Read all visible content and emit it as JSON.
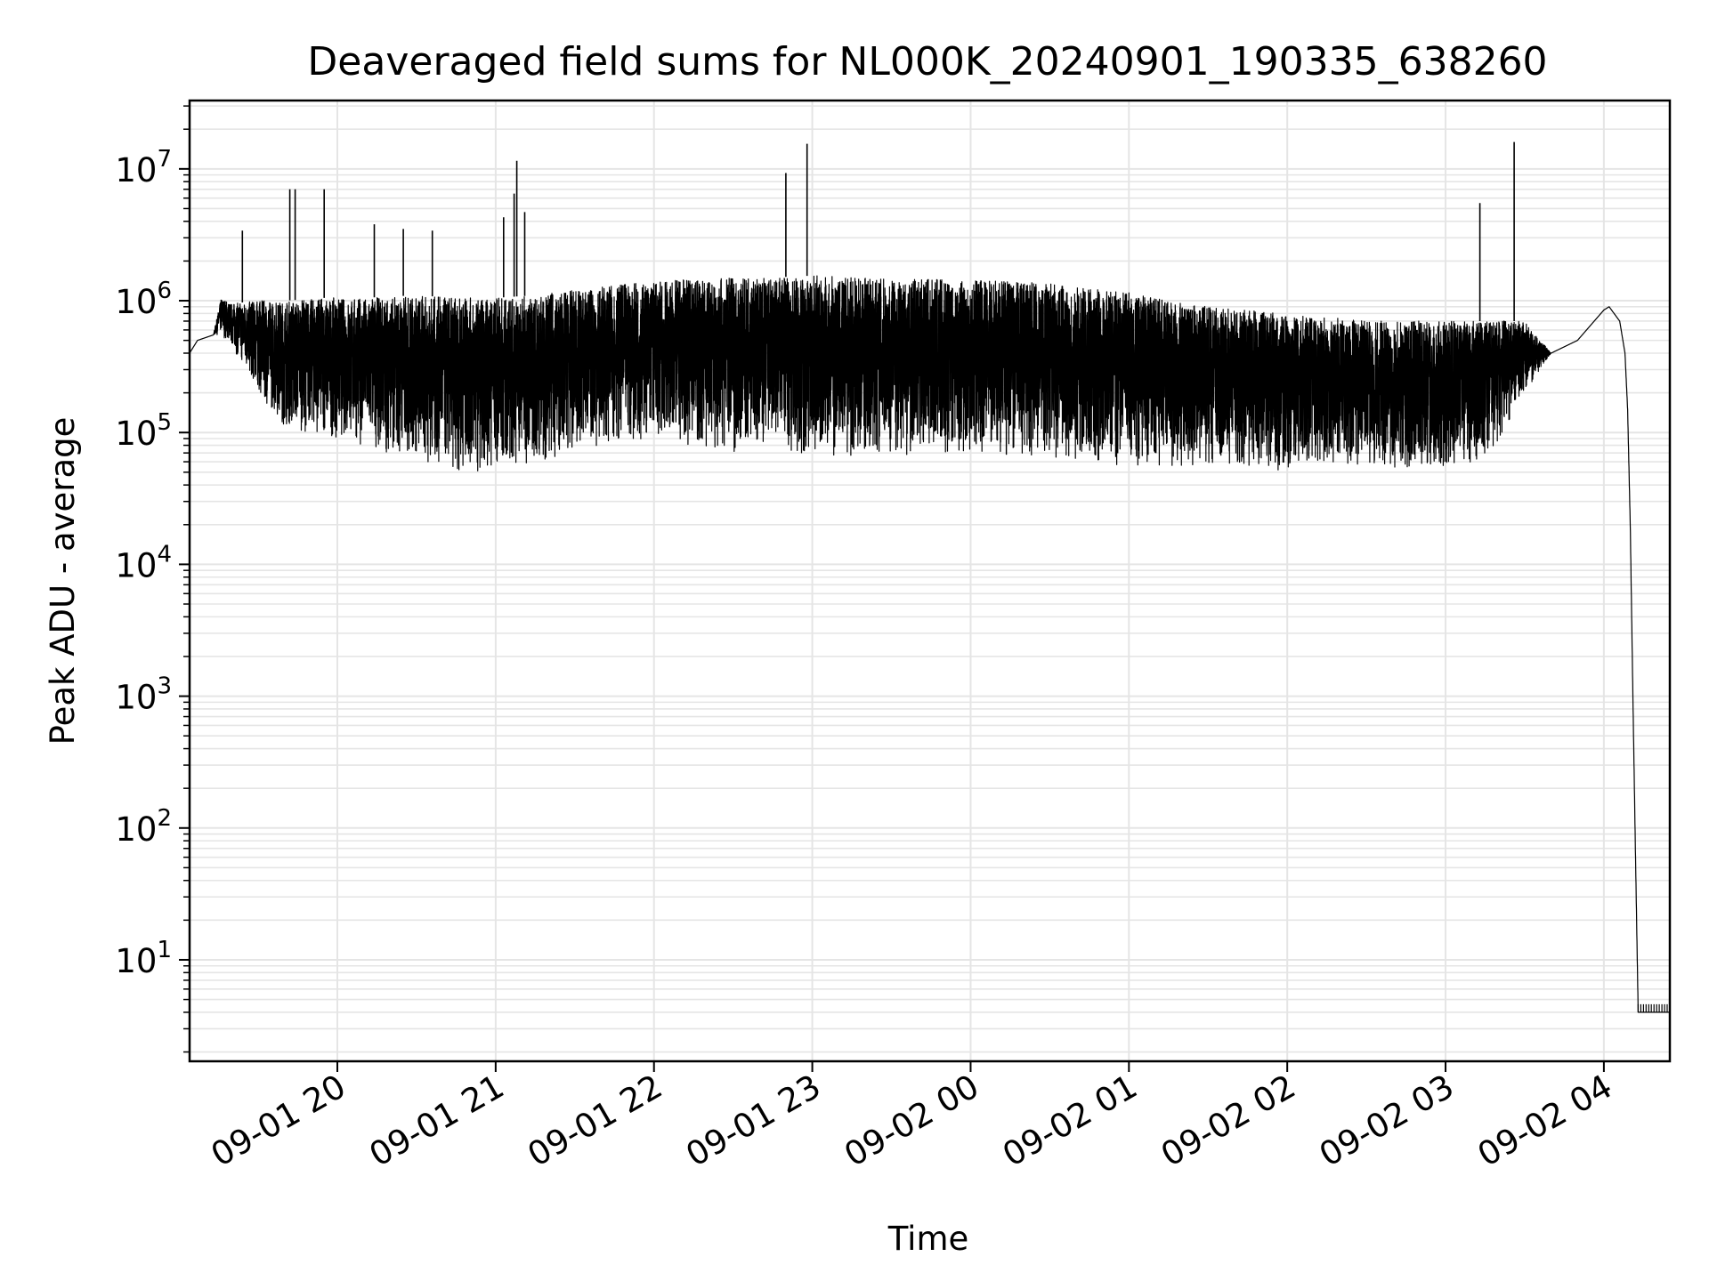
{
  "chart_data": {
    "type": "line",
    "title": "Deaveraged field sums for NL000K_20240901_190335_638260",
    "xlabel": "Time",
    "ylabel": "Peak ADU - average",
    "yscale": "log",
    "ylim": [
      1.7,
      33000000
    ],
    "xlim": [
      "2024-09-01 19:04",
      "2024-09-02 04:25"
    ],
    "x_tick_labels": [
      "09-01 20",
      "09-01 21",
      "09-01 22",
      "09-01 23",
      "09-02 00",
      "09-02 01",
      "09-02 02",
      "09-02 03",
      "09-02 04"
    ],
    "x_ticks": [
      "2024-09-01 20:00",
      "2024-09-01 21:00",
      "2024-09-01 22:00",
      "2024-09-01 23:00",
      "2024-09-02 00:00",
      "2024-09-02 01:00",
      "2024-09-02 02:00",
      "2024-09-02 03:00",
      "2024-09-02 04:00"
    ],
    "y_tick_labels": [
      {
        "base": "10",
        "exp": "1"
      },
      {
        "base": "10",
        "exp": "2"
      },
      {
        "base": "10",
        "exp": "3"
      },
      {
        "base": "10",
        "exp": "4"
      },
      {
        "base": "10",
        "exp": "5"
      },
      {
        "base": "10",
        "exp": "6"
      },
      {
        "base": "10",
        "exp": "7"
      }
    ],
    "y_ticks": [
      10,
      100,
      1000,
      10000,
      100000,
      1000000,
      10000000
    ],
    "grid": "on",
    "line_color": "#000000",
    "grid_color": "#e5e5e5",
    "series": [
      {
        "x": [
          "2024-09-01 19:04",
          "2024-09-01 19:07",
          "2024-09-01 19:13",
          "2024-09-01 19:16",
          "2024-09-01 19:20",
          "2024-09-01 19:30",
          "2024-09-01 19:40",
          "2024-09-01 19:55",
          "2024-09-01 20:10",
          "2024-09-01 20:30",
          "2024-09-01 20:45",
          "2024-09-01 21:00",
          "2024-09-01 21:15",
          "2024-09-01 21:30",
          "2024-09-01 21:45",
          "2024-09-01 22:00",
          "2024-09-01 22:15",
          "2024-09-01 22:30",
          "2024-09-01 22:45",
          "2024-09-01 23:00",
          "2024-09-01 23:15",
          "2024-09-01 23:30",
          "2024-09-01 23:45",
          "2024-09-02 00:00",
          "2024-09-02 00:15",
          "2024-09-02 00:30",
          "2024-09-02 00:45",
          "2024-09-02 01:00",
          "2024-09-02 01:15",
          "2024-09-02 01:30",
          "2024-09-02 01:45",
          "2024-09-02 02:00",
          "2024-09-02 02:15",
          "2024-09-02 02:30",
          "2024-09-02 02:45",
          "2024-09-02 03:00",
          "2024-09-02 03:15",
          "2024-09-02 03:30",
          "2024-09-02 03:40",
          "2024-09-02 03:50",
          "2024-09-02 04:00",
          "2024-09-02 04:02",
          "2024-09-02 04:06",
          "2024-09-02 04:08",
          "2024-09-02 04:09",
          "2024-09-02 04:10",
          "2024-09-02 04:11",
          "2024-09-02 04:12",
          "2024-09-02 04:13",
          "2024-09-02 04:25"
        ],
        "y": [
          400000,
          500000,
          550000,
          1050000,
          950000,
          1000000,
          1000000,
          1050000,
          1050000,
          1100000,
          1050000,
          1050000,
          1100000,
          1200000,
          1300000,
          1400000,
          1450000,
          1500000,
          1500000,
          1550000,
          1500000,
          1500000,
          1450000,
          1450000,
          1400000,
          1350000,
          1250000,
          1150000,
          1000000,
          900000,
          850000,
          800000,
          750000,
          700000,
          700000,
          700000,
          700000,
          700000,
          400000,
          500000,
          850000,
          900000,
          700000,
          400000,
          150000,
          20000,
          1000,
          60,
          4,
          4
        ],
        "lower": [
          400000,
          500000,
          550000,
          550000,
          450000,
          200000,
          110000,
          95000,
          80000,
          60000,
          50000,
          52000,
          60000,
          70000,
          85000,
          90000,
          80000,
          70000,
          68000,
          65000,
          65000,
          68000,
          68000,
          70000,
          68000,
          65000,
          60000,
          55000,
          55000,
          55000,
          52000,
          50000,
          55000,
          56000,
          52000,
          52000,
          58000,
          200000,
          400000,
          500000,
          850000,
          900000,
          700000,
          400000,
          150000,
          20000,
          1000,
          60,
          4,
          4
        ],
        "spikes": [
          {
            "x": "2024-09-01 19:24",
            "y": 3400000
          },
          {
            "x": "2024-09-01 19:42",
            "y": 7000000
          },
          {
            "x": "2024-09-01 19:44",
            "y": 7000000
          },
          {
            "x": "2024-09-01 19:55",
            "y": 7000000
          },
          {
            "x": "2024-09-01 20:14",
            "y": 3800000
          },
          {
            "x": "2024-09-01 20:25",
            "y": 3500000
          },
          {
            "x": "2024-09-01 20:36",
            "y": 3400000
          },
          {
            "x": "2024-09-01 21:03",
            "y": 4300000
          },
          {
            "x": "2024-09-01 21:07",
            "y": 6500000
          },
          {
            "x": "2024-09-01 21:08",
            "y": 11500000
          },
          {
            "x": "2024-09-01 21:11",
            "y": 4700000
          },
          {
            "x": "2024-09-01 22:50",
            "y": 9300000
          },
          {
            "x": "2024-09-01 22:58",
            "y": 15500000
          },
          {
            "x": "2024-09-02 03:13",
            "y": 5500000
          },
          {
            "x": "2024-09-02 03:26",
            "y": 16000000
          }
        ]
      }
    ]
  }
}
